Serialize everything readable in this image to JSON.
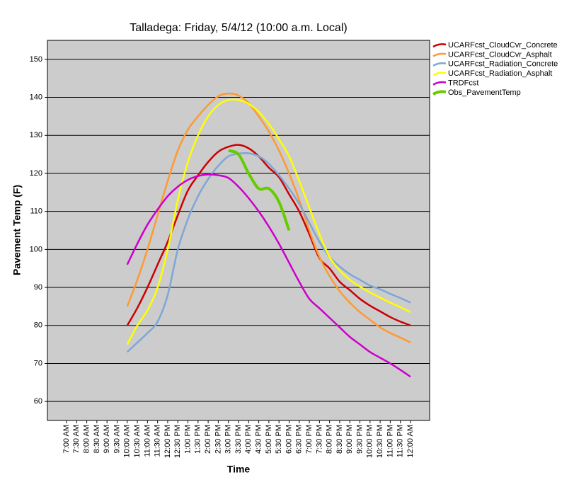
{
  "chart_data": {
    "type": "line",
    "title": "Talladega: Friday, 5/4/12 (10:00 a.m. Local)",
    "x_label": "Time",
    "y_label": "Pavement Temp (F)",
    "categories": [
      "7:00 AM",
      "7:30 AM",
      "8:00 AM",
      "8:30 AM",
      "9:00 AM",
      "9:30 AM",
      "10:00 AM",
      "10:30 AM",
      "11:00 AM",
      "11:30 AM",
      "12:00 PM",
      "12:30 PM",
      "1:00 PM",
      "1:30 PM",
      "2:00 PM",
      "2:30 PM",
      "3:00 PM",
      "3:30 PM",
      "4:00 PM",
      "4:30 PM",
      "5:00 PM",
      "5:30 PM",
      "6:00 PM",
      "6:30 PM",
      "7:00 PM",
      "7:30 PM",
      "8:00 PM",
      "8:30 PM",
      "9:00 PM",
      "9:30 PM",
      "10:00 PM",
      "10:30 PM",
      "11:00 PM",
      "11:30 PM",
      "12:00 AM"
    ],
    "ylim": [
      55,
      155
    ],
    "yticks": [
      60,
      70,
      80,
      90,
      100,
      110,
      120,
      130,
      140,
      150
    ],
    "grid": true,
    "legend": "right",
    "series": [
      {
        "name": "UCARFcst_CloudCvr_Concrete",
        "color": "#cc0000",
        "values": [
          null,
          null,
          null,
          null,
          null,
          null,
          80,
          84.6,
          90,
          96,
          102,
          109,
          115.5,
          119.5,
          123,
          125.7,
          127,
          127.5,
          126.6,
          124.5,
          121.5,
          119,
          114.5,
          110,
          104,
          97.7,
          95,
          91.5,
          89.3,
          87,
          85.2,
          83.7,
          82.2,
          81,
          80
        ]
      },
      {
        "name": "UCARFcst_CloudCvr_Asphalt",
        "color": "#ff9933",
        "values": [
          null,
          null,
          null,
          null,
          null,
          null,
          85,
          92,
          100,
          109,
          118,
          126,
          131.5,
          135,
          138,
          140.3,
          141,
          140.5,
          138.5,
          135,
          131,
          126,
          120,
          113,
          105,
          98,
          93,
          89,
          86,
          83.5,
          81.5,
          79.5,
          78,
          76.8,
          75.5
        ]
      },
      {
        "name": "UCARFcst_Radiation_Concrete",
        "color": "#7ea6d6",
        "values": [
          null,
          null,
          null,
          null,
          null,
          null,
          73,
          75.5,
          78,
          81,
          88,
          100,
          108,
          114,
          118.5,
          122,
          124.5,
          125.2,
          125.3,
          124.5,
          122.5,
          119.5,
          116,
          112,
          107,
          102,
          98,
          95.5,
          93.5,
          92,
          90.5,
          89.5,
          88.3,
          87.2,
          86
        ]
      },
      {
        "name": "UCARFcst_Radiation_Asphalt",
        "color": "#ffff00",
        "values": [
          null,
          null,
          null,
          null,
          null,
          null,
          75,
          80,
          84,
          90,
          100,
          113,
          123,
          130,
          135,
          138,
          139.3,
          139.3,
          138.3,
          136.2,
          133,
          129,
          124.5,
          118,
          111,
          104,
          98,
          94.5,
          92,
          90.2,
          88.7,
          87.3,
          86,
          84.8,
          83.5
        ]
      },
      {
        "name": "TRDFcst",
        "color": "#cc00cc",
        "values": [
          null,
          null,
          null,
          null,
          null,
          null,
          96,
          101.5,
          106.5,
          110.5,
          114,
          116.5,
          118.3,
          119.3,
          119.7,
          119.5,
          118.8,
          116.5,
          113.5,
          110,
          106,
          101.5,
          96.5,
          91.5,
          87,
          84.5,
          82,
          79.5,
          77,
          75,
          73,
          71.5,
          70,
          68.3,
          66.5
        ]
      },
      {
        "name": "Obs_PavementTemp",
        "color": "#66cc00",
        "values": [
          null,
          null,
          null,
          null,
          null,
          null,
          null,
          null,
          null,
          null,
          null,
          null,
          null,
          null,
          null,
          null,
          126,
          125,
          120,
          116,
          116,
          112.5,
          105,
          null,
          null,
          null,
          null,
          null,
          null,
          null,
          null,
          null,
          null,
          null,
          null
        ]
      }
    ]
  }
}
